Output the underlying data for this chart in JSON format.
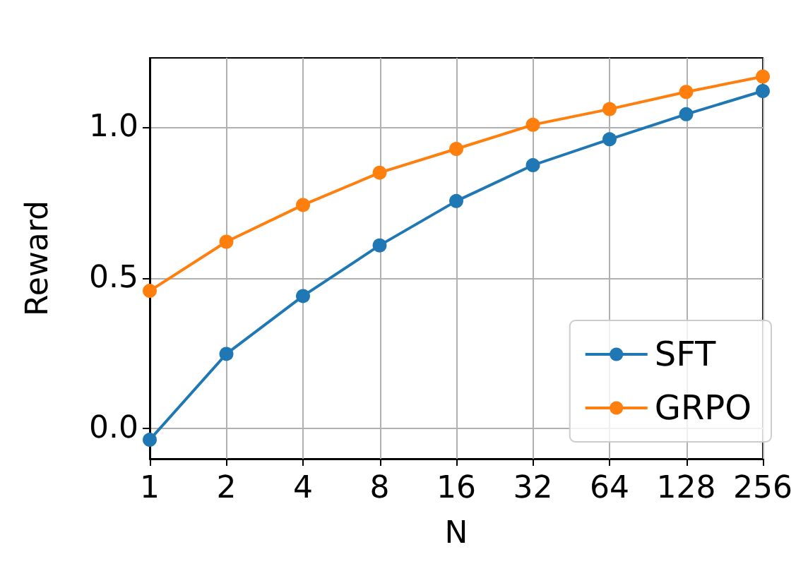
{
  "chart_data": {
    "type": "line",
    "xlabel": "N",
    "ylabel": "Reward",
    "categories": [
      "1",
      "2",
      "4",
      "8",
      "16",
      "32",
      "64",
      "128",
      "256"
    ],
    "series": [
      {
        "name": "SFT",
        "color": "#1f77b4",
        "values": [
          -0.037,
          0.248,
          0.44,
          0.608,
          0.755,
          0.874,
          0.96,
          1.043,
          1.12
        ]
      },
      {
        "name": "GRPO",
        "color": "#ff7f0e",
        "values": [
          0.457,
          0.62,
          0.742,
          0.849,
          0.928,
          1.008,
          1.06,
          1.117,
          1.168
        ]
      }
    ],
    "ylim": [
      -0.1,
      1.23
    ],
    "yticks": [
      {
        "value": 0,
        "label": "0.0"
      },
      {
        "value": 0.5,
        "label": "0.5"
      },
      {
        "value": 1,
        "label": "1.0"
      }
    ],
    "grid": true,
    "legend": "bottom right",
    "marker": "circle",
    "line_style": "solid"
  }
}
